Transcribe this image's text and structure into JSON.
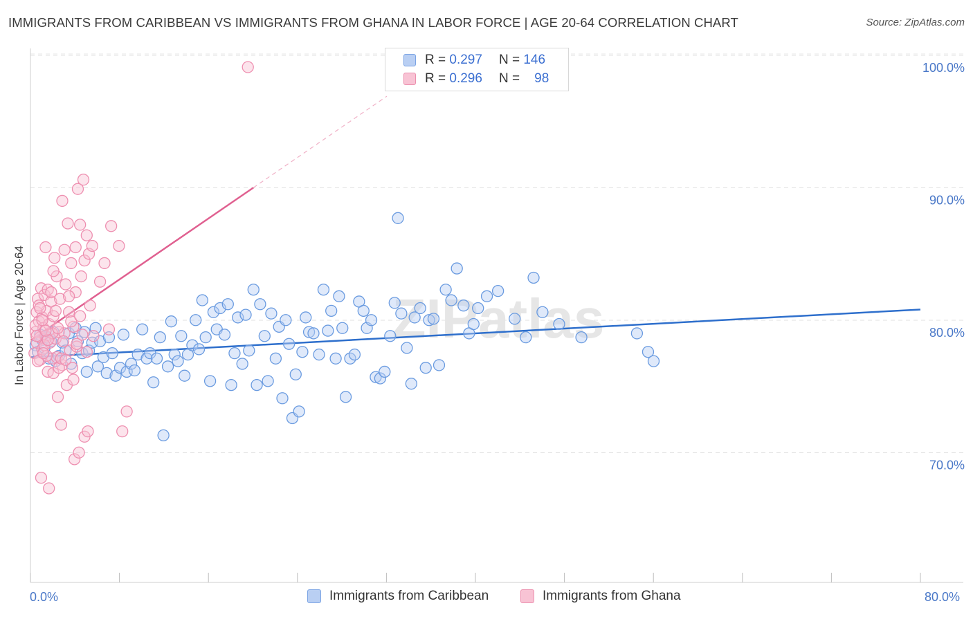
{
  "title": "IMMIGRANTS FROM CARIBBEAN VS IMMIGRANTS FROM GHANA IN LABOR FORCE | AGE 20-64 CORRELATION CHART",
  "source": "Source: ZipAtlas.com",
  "watermark": "ZIPatlas",
  "colors": {
    "blue": "#6a9be0",
    "pink": "#ee8fb0",
    "blue_line": "#2e6fcc",
    "pink_line": "#e06090",
    "tick_text": "#4a78c8"
  },
  "legend": {
    "rows": [
      {
        "r_label": "R =",
        "r_value": "0.297",
        "n_label": "N =",
        "n_value": "146"
      },
      {
        "r_label": "R =",
        "r_value": "0.296",
        "n_label": "N =",
        "n_value": "98"
      }
    ]
  },
  "chart_data": {
    "type": "scatter",
    "ylabel": "In Labor Force | Age 20-64",
    "xlim": [
      0,
      80
    ],
    "ylim": [
      61,
      102
    ],
    "x_tick_labels": [
      "0.0%",
      "80.0%"
    ],
    "y_ticks": [
      {
        "value": 100,
        "label": "100.0%"
      },
      {
        "value": 90,
        "label": "90.0%"
      },
      {
        "value": 80,
        "label": "80.0%"
      },
      {
        "value": 70,
        "label": "70.0%"
      }
    ],
    "grid": "horizontal dashed",
    "legend_position": "top-center",
    "series": [
      {
        "name": "Immigrants from Caribbean",
        "color": "#6a9be0",
        "trend": {
          "x0": 0,
          "y0": 78.1,
          "x1": 80,
          "y1": 81.7
        },
        "points": [
          [
            0.4,
            79.0
          ],
          [
            0.6,
            78.5
          ],
          [
            0.8,
            79.8
          ],
          [
            1.0,
            79.4
          ],
          [
            1.2,
            78.8
          ],
          [
            1.4,
            79.6
          ],
          [
            1.6,
            78.0
          ],
          [
            1.8,
            79.3
          ],
          [
            2.0,
            80.0
          ],
          [
            2.2,
            77.8
          ],
          [
            2.5,
            78.2
          ],
          [
            2.8,
            79.2
          ],
          [
            3.1,
            78.6
          ],
          [
            3.4,
            79.9
          ],
          [
            3.6,
            77.6
          ],
          [
            4.0,
            80.3
          ],
          [
            4.2,
            79.3
          ],
          [
            4.6,
            78.4
          ],
          [
            4.8,
            80.0
          ],
          [
            5.0,
            77.0
          ],
          [
            5.2,
            78.6
          ],
          [
            5.5,
            79.2
          ],
          [
            5.8,
            80.3
          ],
          [
            6.0,
            77.4
          ],
          [
            6.2,
            79.3
          ],
          [
            6.5,
            78.1
          ],
          [
            6.8,
            76.9
          ],
          [
            7.0,
            79.6
          ],
          [
            7.3,
            78.4
          ],
          [
            7.6,
            76.7
          ],
          [
            8.0,
            77.3
          ],
          [
            8.3,
            79.8
          ],
          [
            8.6,
            77.0
          ],
          [
            9.0,
            77.6
          ],
          [
            9.3,
            77.1
          ],
          [
            9.6,
            78.3
          ],
          [
            10.0,
            80.2
          ],
          [
            10.4,
            78.0
          ],
          [
            10.7,
            78.4
          ],
          [
            11.0,
            76.2
          ],
          [
            11.3,
            78.0
          ],
          [
            11.6,
            79.6
          ],
          [
            11.9,
            72.2
          ],
          [
            12.3,
            77.4
          ],
          [
            12.6,
            80.8
          ],
          [
            12.9,
            78.3
          ],
          [
            13.2,
            77.8
          ],
          [
            13.5,
            79.7
          ],
          [
            13.8,
            76.7
          ],
          [
            14.1,
            78.3
          ],
          [
            14.5,
            79.0
          ],
          [
            14.8,
            80.9
          ],
          [
            15.1,
            78.7
          ],
          [
            15.4,
            82.4
          ],
          [
            15.7,
            79.6
          ],
          [
            16.1,
            76.3
          ],
          [
            16.4,
            81.5
          ],
          [
            16.7,
            80.2
          ],
          [
            17.0,
            81.8
          ],
          [
            17.4,
            79.8
          ],
          [
            17.7,
            82.1
          ],
          [
            18.0,
            76.0
          ],
          [
            18.3,
            78.4
          ],
          [
            18.6,
            81.1
          ],
          [
            19.0,
            77.6
          ],
          [
            19.3,
            81.3
          ],
          [
            19.6,
            78.6
          ],
          [
            20.0,
            83.2
          ],
          [
            20.3,
            76.0
          ],
          [
            20.6,
            82.1
          ],
          [
            21.0,
            79.7
          ],
          [
            21.3,
            76.3
          ],
          [
            21.6,
            81.4
          ],
          [
            22.0,
            78.0
          ],
          [
            22.3,
            80.4
          ],
          [
            22.6,
            75.0
          ],
          [
            22.9,
            80.9
          ],
          [
            23.2,
            79.1
          ],
          [
            23.5,
            73.5
          ],
          [
            23.8,
            76.8
          ],
          [
            24.1,
            74.0
          ],
          [
            24.4,
            78.5
          ],
          [
            24.7,
            81.1
          ],
          [
            25.0,
            80.0
          ],
          [
            25.4,
            79.9
          ],
          [
            25.9,
            78.3
          ],
          [
            26.3,
            83.2
          ],
          [
            26.7,
            80.1
          ],
          [
            27.0,
            81.6
          ],
          [
            27.4,
            78.0
          ],
          [
            27.7,
            82.7
          ],
          [
            28.0,
            80.3
          ],
          [
            28.3,
            75.1
          ],
          [
            28.7,
            78.0
          ],
          [
            29.1,
            78.3
          ],
          [
            29.5,
            82.3
          ],
          [
            29.9,
            81.6
          ],
          [
            30.2,
            80.3
          ],
          [
            30.6,
            80.9
          ],
          [
            31.0,
            76.6
          ],
          [
            31.4,
            76.5
          ],
          [
            31.8,
            77.0
          ],
          [
            32.3,
            79.7
          ],
          [
            32.7,
            82.2
          ],
          [
            33.0,
            88.6
          ],
          [
            33.3,
            81.4
          ],
          [
            33.8,
            78.8
          ],
          [
            34.2,
            76.1
          ],
          [
            34.5,
            81.1
          ],
          [
            35.0,
            81.8
          ],
          [
            35.5,
            77.3
          ],
          [
            35.8,
            80.9
          ],
          [
            36.2,
            81.0
          ],
          [
            36.7,
            77.5
          ],
          [
            37.3,
            83.2
          ],
          [
            37.8,
            82.4
          ],
          [
            38.3,
            84.8
          ],
          [
            38.9,
            82.0
          ],
          [
            39.4,
            79.9
          ],
          [
            39.8,
            80.6
          ],
          [
            40.2,
            81.8
          ],
          [
            41.0,
            82.7
          ],
          [
            42.0,
            83.1
          ],
          [
            43.5,
            81.0
          ],
          [
            44.5,
            79.6
          ],
          [
            45.2,
            84.1
          ],
          [
            46.0,
            81.5
          ],
          [
            47.5,
            80.6
          ],
          [
            49.5,
            79.6
          ],
          [
            54.5,
            79.9
          ],
          [
            55.5,
            78.5
          ],
          [
            56.0,
            77.8
          ]
        ]
      },
      {
        "name": "Immigrants from Ghana",
        "color": "#ee8fb0",
        "trend": {
          "x0": 0,
          "y0": 79.4,
          "x1": 20,
          "y1": 90.9
        },
        "points": [
          [
            0.3,
            78.4
          ],
          [
            0.4,
            80.0
          ],
          [
            0.5,
            81.5
          ],
          [
            0.5,
            79.2
          ],
          [
            0.6,
            82.5
          ],
          [
            0.7,
            80.8
          ],
          [
            0.8,
            77.9
          ],
          [
            0.8,
            79.6
          ],
          [
            0.9,
            83.3
          ],
          [
            1.0,
            81.1
          ],
          [
            1.0,
            78.7
          ],
          [
            1.1,
            80.3
          ],
          [
            1.2,
            82.8
          ],
          [
            1.3,
            86.4
          ],
          [
            1.3,
            79.7
          ],
          [
            1.4,
            81.6
          ],
          [
            1.5,
            77.0
          ],
          [
            1.5,
            83.2
          ],
          [
            1.6,
            80.6
          ],
          [
            1.7,
            79.2
          ],
          [
            1.8,
            82.3
          ],
          [
            1.9,
            78.0
          ],
          [
            2.0,
            76.9
          ],
          [
            2.0,
            81.2
          ],
          [
            2.1,
            85.6
          ],
          [
            2.2,
            79.5
          ],
          [
            2.3,
            84.2
          ],
          [
            2.3,
            78.1
          ],
          [
            2.4,
            75.1
          ],
          [
            2.5,
            80.0
          ],
          [
            2.6,
            82.5
          ],
          [
            2.7,
            73.0
          ],
          [
            2.8,
            89.9
          ],
          [
            2.8,
            77.5
          ],
          [
            3.0,
            86.2
          ],
          [
            3.0,
            79.9
          ],
          [
            3.1,
            83.6
          ],
          [
            3.2,
            76.0
          ],
          [
            3.3,
            88.2
          ],
          [
            3.4,
            81.5
          ],
          [
            3.5,
            78.6
          ],
          [
            3.6,
            85.2
          ],
          [
            3.7,
            77.3
          ],
          [
            3.8,
            80.4
          ],
          [
            3.9,
            70.4
          ],
          [
            4.0,
            86.4
          ],
          [
            4.0,
            83.0
          ],
          [
            4.1,
            78.9
          ],
          [
            4.2,
            90.8
          ],
          [
            4.3,
            70.9
          ],
          [
            4.4,
            88.1
          ],
          [
            4.5,
            84.2
          ],
          [
            4.6,
            79.8
          ],
          [
            4.7,
            91.5
          ],
          [
            4.8,
            85.4
          ],
          [
            4.8,
            72.1
          ],
          [
            5.0,
            87.3
          ],
          [
            5.0,
            78.5
          ],
          [
            5.1,
            72.5
          ],
          [
            5.2,
            85.9
          ],
          [
            5.3,
            82.0
          ],
          [
            5.5,
            86.5
          ],
          [
            5.6,
            79.7
          ],
          [
            6.2,
            83.8
          ],
          [
            6.6,
            85.2
          ],
          [
            7.0,
            80.2
          ],
          [
            7.2,
            88.0
          ],
          [
            7.9,
            86.5
          ],
          [
            8.2,
            72.5
          ],
          [
            8.6,
            74.0
          ],
          [
            19.5,
            100.0
          ],
          [
            0.9,
            69.0
          ],
          [
            1.6,
            68.2
          ],
          [
            1.2,
            79.0
          ],
          [
            0.7,
            82.0
          ],
          [
            2.9,
            79.3
          ],
          [
            1.8,
            83.0
          ],
          [
            3.6,
            80.8
          ],
          [
            0.4,
            80.5
          ],
          [
            2.2,
            81.6
          ],
          [
            1.4,
            78.2
          ],
          [
            0.6,
            77.8
          ],
          [
            2.5,
            77.3
          ],
          [
            3.8,
            76.4
          ],
          [
            1.0,
            80.9
          ],
          [
            2.0,
            84.6
          ],
          [
            4.4,
            81.2
          ],
          [
            1.1,
            78.4
          ],
          [
            1.9,
            79.9
          ],
          [
            0.8,
            81.8
          ],
          [
            3.4,
            82.7
          ],
          [
            2.7,
            78.0
          ],
          [
            1.5,
            79.4
          ],
          [
            4.1,
            79.1
          ],
          [
            0.5,
            79.7
          ],
          [
            2.4,
            80.3
          ],
          [
            1.3,
            80.1
          ],
          [
            3.1,
            77.9
          ]
        ]
      }
    ]
  }
}
